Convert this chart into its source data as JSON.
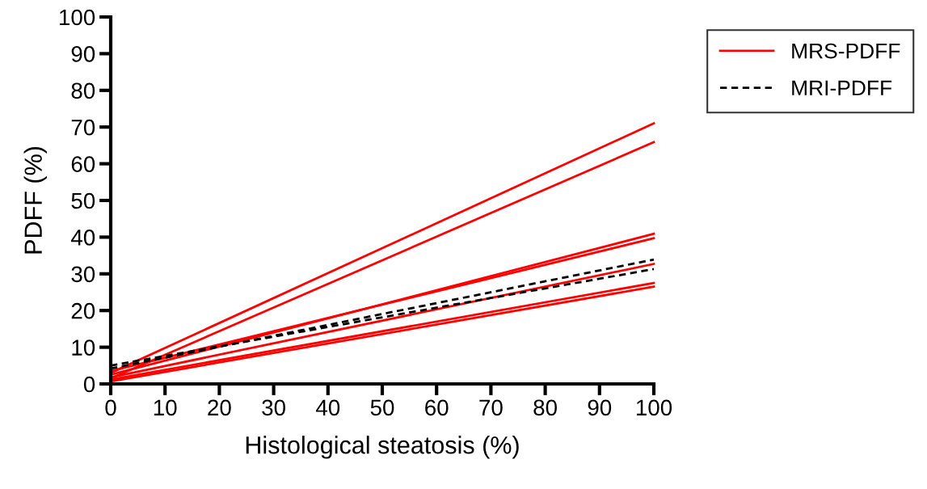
{
  "chart_data": {
    "type": "line",
    "xlabel": "Histological steatosis (%)",
    "ylabel": "PDFF (%)",
    "xlim": [
      0,
      100
    ],
    "ylim": [
      0,
      100
    ],
    "xticks": [
      0,
      10,
      20,
      30,
      40,
      50,
      60,
      70,
      80,
      90,
      100
    ],
    "yticks": [
      0,
      10,
      20,
      30,
      40,
      50,
      60,
      70,
      80,
      90,
      100
    ],
    "grid": false,
    "legend": "top right",
    "marker": "none",
    "x": [
      0,
      100
    ],
    "series": [
      {
        "name": "MRS-PDFF",
        "color": "#ff0000",
        "line_style": "solid",
        "values": [
          3,
          71.0
        ]
      },
      {
        "color": "#ff0000",
        "line_style": "solid",
        "values": [
          1.5,
          65.9
        ]
      },
      {
        "color": "#ff0000",
        "line_style": "solid",
        "values": [
          2.5,
          40.9
        ]
      },
      {
        "color": "#ff0000",
        "line_style": "solid",
        "values": [
          3.5,
          39.7
        ]
      },
      {
        "color": "#ff0000",
        "line_style": "solid",
        "values": [
          1.8,
          32.7
        ]
      },
      {
        "color": "#ff0000",
        "line_style": "solid",
        "values": [
          1.2,
          27.5
        ]
      },
      {
        "color": "#ff0000",
        "line_style": "solid",
        "values": [
          0.7,
          26.5
        ]
      },
      {
        "name": "MRI-PDFF",
        "color": "#000000",
        "line_style": "dashed",
        "values": [
          4.2,
          33.9
        ]
      },
      {
        "color": "#000000",
        "line_style": "dashed",
        "values": [
          5.0,
          31.3
        ]
      }
    ]
  }
}
